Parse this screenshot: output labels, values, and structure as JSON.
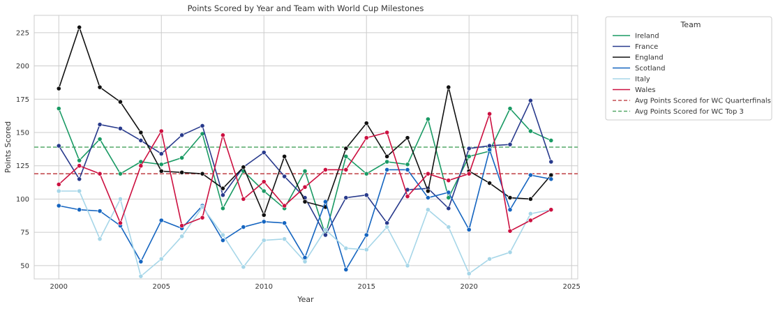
{
  "chart_data": {
    "type": "line",
    "title": "Points Scored by Year and Team with World Cup Milestones",
    "xlabel": "Year",
    "ylabel": "Points Scored",
    "xlim": [
      1998.8,
      2025.3
    ],
    "ylim": [
      40,
      238
    ],
    "xticks": [
      2000,
      2005,
      2010,
      2015,
      2020,
      2025
    ],
    "yticks": [
      50,
      75,
      100,
      125,
      150,
      175,
      200,
      225
    ],
    "grid": true,
    "legend_title": "Team",
    "legend_position": "outside-right",
    "x": [
      2000,
      2001,
      2002,
      2003,
      2004,
      2005,
      2006,
      2007,
      2008,
      2009,
      2010,
      2011,
      2012,
      2013,
      2014,
      2015,
      2016,
      2017,
      2018,
      2019,
      2020,
      2021,
      2022,
      2023,
      2024
    ],
    "series": [
      {
        "name": "Ireland",
        "color": "#1a9a64",
        "values": [
          168,
          129,
          145,
          119,
          128,
          126,
          131,
          149,
          93,
          121,
          106,
          93,
          121,
          73,
          132,
          119,
          128,
          126,
          160,
          101,
          132,
          136,
          168,
          151,
          144
        ]
      },
      {
        "name": "France",
        "color": "#283a8c",
        "values": [
          140,
          115,
          156,
          153,
          144,
          134,
          148,
          155,
          103,
          124,
          135,
          117,
          101,
          73,
          101,
          103,
          82,
          107,
          108,
          93,
          138,
          140,
          141,
          174,
          128
        ]
      },
      {
        "name": "England",
        "color": "#111111",
        "values": [
          183,
          229,
          184,
          173,
          150,
          121,
          120,
          119,
          108,
          124,
          88,
          132,
          98,
          94,
          138,
          157,
          132,
          146,
          106,
          184,
          121,
          112,
          101,
          100,
          118
        ]
      },
      {
        "name": "Scotland",
        "color": "#1565c0",
        "values": [
          95,
          92,
          91,
          80,
          53,
          84,
          78,
          95,
          69,
          79,
          83,
          82,
          56,
          98,
          47,
          73,
          122,
          122,
          101,
          105,
          77,
          137,
          92,
          118,
          115
        ]
      },
      {
        "name": "Italy",
        "color": "#a6d6e8",
        "values": [
          106,
          106,
          70,
          100,
          42,
          55,
          72,
          94,
          73,
          49,
          69,
          70,
          53,
          77,
          63,
          62,
          79,
          50,
          92,
          79,
          44,
          55,
          60,
          89,
          92
        ]
      },
      {
        "name": "Wales",
        "color": "#cc1040",
        "values": [
          111,
          125,
          119,
          82,
          125,
          151,
          80,
          86,
          148,
          100,
          113,
          95,
          109,
          122,
          122,
          146,
          150,
          102,
          119,
          114,
          119,
          164,
          76,
          84,
          92
        ]
      }
    ],
    "reference_lines": [
      {
        "name": "Avg Points Scored for WC Quarterfinals",
        "value": 119,
        "color": "#c44e52",
        "style": "dashed"
      },
      {
        "name": "Avg Points Scored for WC Top 3",
        "value": 139,
        "color": "#55a868",
        "style": "dashed"
      }
    ]
  }
}
